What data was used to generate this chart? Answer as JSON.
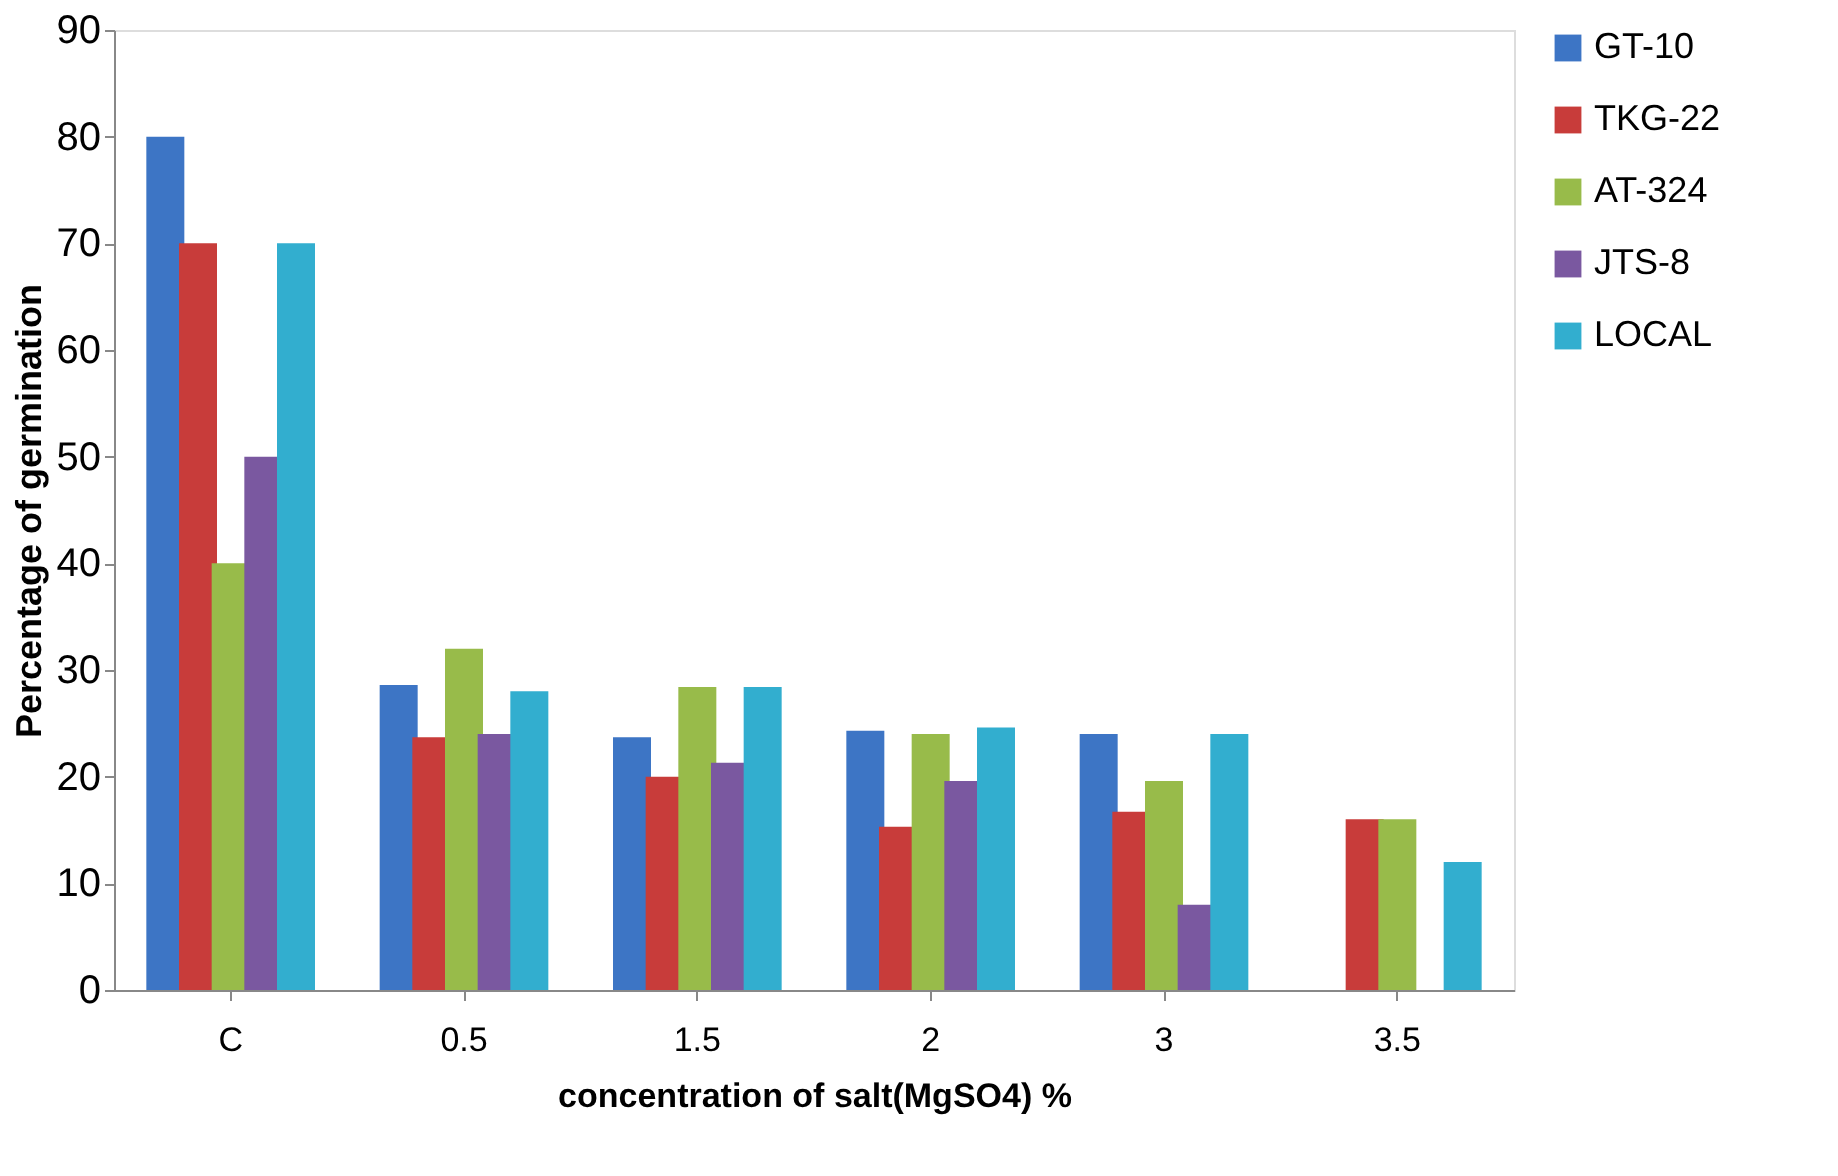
{
  "chart_data": {
    "type": "bar",
    "xlabel": "concentration of salt(MgSO4) %",
    "ylabel": "Percentage of germination",
    "categories": [
      "C",
      "0.5",
      "1.5",
      "2",
      "3",
      "3.5"
    ],
    "series": [
      {
        "name": "GT-10",
        "color": "#3d75c5",
        "values": [
          80,
          28.6,
          23.7,
          24.3,
          24,
          null
        ]
      },
      {
        "name": "TKG-22",
        "color": "#c83c3a",
        "values": [
          70,
          23.7,
          20,
          15.3,
          16.7,
          16
        ]
      },
      {
        "name": "AT-324",
        "color": "#98bb4a",
        "values": [
          40,
          32,
          28.4,
          24,
          19.6,
          16
        ]
      },
      {
        "name": "JTS-8",
        "color": "#7a58a0",
        "values": [
          50,
          24,
          21.3,
          19.6,
          8,
          null
        ]
      },
      {
        "name": "LOCAL",
        "color": "#32aecf",
        "values": [
          70,
          28,
          28.4,
          24.6,
          24,
          12
        ]
      }
    ],
    "ylim": [
      0,
      90
    ],
    "yticks": [
      0,
      10,
      20,
      30,
      40,
      50,
      60,
      70,
      80,
      90
    ],
    "grid": false,
    "legend": "right"
  }
}
